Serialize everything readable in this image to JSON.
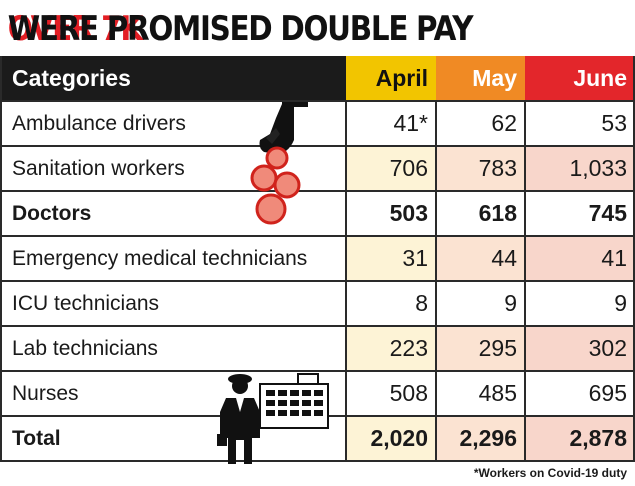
{
  "headline": {
    "part1": "OVER 7K",
    "part2": " WERE PROMISED DOUBLE PAY"
  },
  "colors": {
    "headline_red": "#e31e24",
    "header_dark": "#1b1b1b",
    "april": "#f2c500",
    "may": "#f08a24",
    "june": "#e3262b",
    "april_tint": "#fdf3d6",
    "may_tint": "#fbe3d2",
    "june_tint": "#f8d6cb",
    "plain_row": "#ffffff"
  },
  "chart_data": {
    "type": "table",
    "columns": [
      "Categories",
      "April",
      "May",
      "June"
    ],
    "rows": [
      {
        "label": "Ambulance drivers",
        "values": [
          "41*",
          "62",
          "53"
        ],
        "bold": false,
        "shaded": false
      },
      {
        "label": "Sanitation workers",
        "values": [
          "706",
          "783",
          "1,033"
        ],
        "bold": false,
        "shaded": true
      },
      {
        "label": "Doctors",
        "values": [
          "503",
          "618",
          "745"
        ],
        "bold": true,
        "shaded": false
      },
      {
        "label": "Emergency medical technicians",
        "values": [
          "31",
          "44",
          "41"
        ],
        "bold": false,
        "shaded": true
      },
      {
        "label": "ICU technicians",
        "values": [
          "8",
          "9",
          "9"
        ],
        "bold": false,
        "shaded": false
      },
      {
        "label": "Lab technicians",
        "values": [
          "223",
          "295",
          "302"
        ],
        "bold": false,
        "shaded": true
      },
      {
        "label": "Nurses",
        "values": [
          "508",
          "485",
          "695"
        ],
        "bold": false,
        "shaded": false
      },
      {
        "label": "Total",
        "values": [
          "2,020",
          "2,296",
          "2,878"
        ],
        "bold": true,
        "shaded": true
      }
    ],
    "footnote": "*Workers on Covid-19 duty"
  },
  "icons": [
    "hand-with-coins-icon",
    "doctor-figure-icon",
    "hospital-building-icon"
  ]
}
